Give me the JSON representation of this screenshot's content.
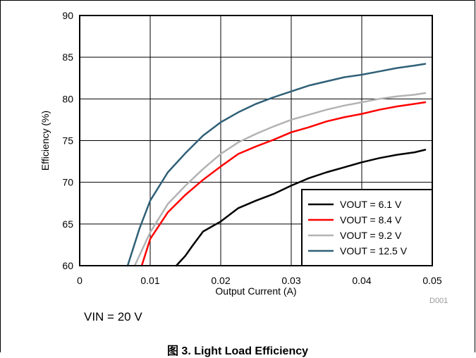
{
  "chart_data": {
    "type": "line",
    "title": "",
    "xlabel": "Output Current (A)",
    "ylabel": "Efficiency (%)",
    "xlim": [
      0,
      0.05
    ],
    "ylim": [
      60,
      90
    ],
    "xticks": [
      0,
      0.01,
      0.02,
      0.03,
      0.04,
      0.05
    ],
    "yticks": [
      60,
      65,
      70,
      75,
      80,
      85,
      90
    ],
    "xtick_labels": [
      "0",
      "0.01",
      "0.02",
      "0.03",
      "0.04",
      "0.05"
    ],
    "ytick_labels": [
      "60",
      "65",
      "70",
      "75",
      "80",
      "85",
      "90"
    ],
    "grid": true,
    "legend_position": "bottom-right",
    "series": [
      {
        "name": "VOUT = 6.1 V",
        "color": "#000000",
        "x": [
          0.0137,
          0.015,
          0.016,
          0.0175,
          0.02,
          0.0225,
          0.025,
          0.0275,
          0.03,
          0.0325,
          0.035,
          0.0375,
          0.04,
          0.0425,
          0.045,
          0.0475,
          0.049
        ],
        "y": [
          60,
          61.2,
          62.4,
          64.1,
          65.3,
          66.9,
          67.8,
          68.6,
          69.6,
          70.5,
          71.2,
          71.8,
          72.4,
          72.9,
          73.3,
          73.6,
          73.9
        ]
      },
      {
        "name": "VOUT = 8.4 V",
        "color": "#ff0000",
        "x": [
          0.0088,
          0.01,
          0.0125,
          0.015,
          0.0175,
          0.02,
          0.0225,
          0.025,
          0.0275,
          0.03,
          0.0325,
          0.035,
          0.0375,
          0.04,
          0.0425,
          0.045,
          0.0475,
          0.049
        ],
        "y": [
          60,
          63.2,
          66.4,
          68.5,
          70.3,
          71.9,
          73.4,
          74.3,
          75.1,
          76.0,
          76.6,
          77.3,
          77.8,
          78.2,
          78.7,
          79.1,
          79.4,
          79.6
        ]
      },
      {
        "name": "VOUT = 9.2 V",
        "color": "#b3b3b3",
        "x": [
          0.0078,
          0.01,
          0.0125,
          0.015,
          0.0175,
          0.02,
          0.0225,
          0.025,
          0.0275,
          0.03,
          0.0325,
          0.035,
          0.0375,
          0.04,
          0.0425,
          0.045,
          0.0475,
          0.049
        ],
        "y": [
          60,
          64.0,
          67.4,
          69.6,
          71.6,
          73.4,
          74.8,
          75.8,
          76.7,
          77.5,
          78.1,
          78.7,
          79.2,
          79.6,
          80.0,
          80.3,
          80.5,
          80.7
        ]
      },
      {
        "name": "VOUT = 12.5 V",
        "color": "#2f6077",
        "x": [
          0.0068,
          0.0085,
          0.01,
          0.0125,
          0.015,
          0.0175,
          0.02,
          0.0225,
          0.025,
          0.0275,
          0.03,
          0.0325,
          0.035,
          0.0375,
          0.04,
          0.0425,
          0.045,
          0.0475,
          0.049
        ],
        "y": [
          60,
          64.5,
          67.8,
          71.2,
          73.5,
          75.6,
          77.2,
          78.4,
          79.4,
          80.2,
          80.9,
          81.6,
          82.1,
          82.6,
          82.9,
          83.3,
          83.7,
          84.0,
          84.2
        ]
      }
    ]
  },
  "figure_id": "D001",
  "condition": "VIN = 20 V",
  "caption": "图 3. Light Load Efficiency"
}
